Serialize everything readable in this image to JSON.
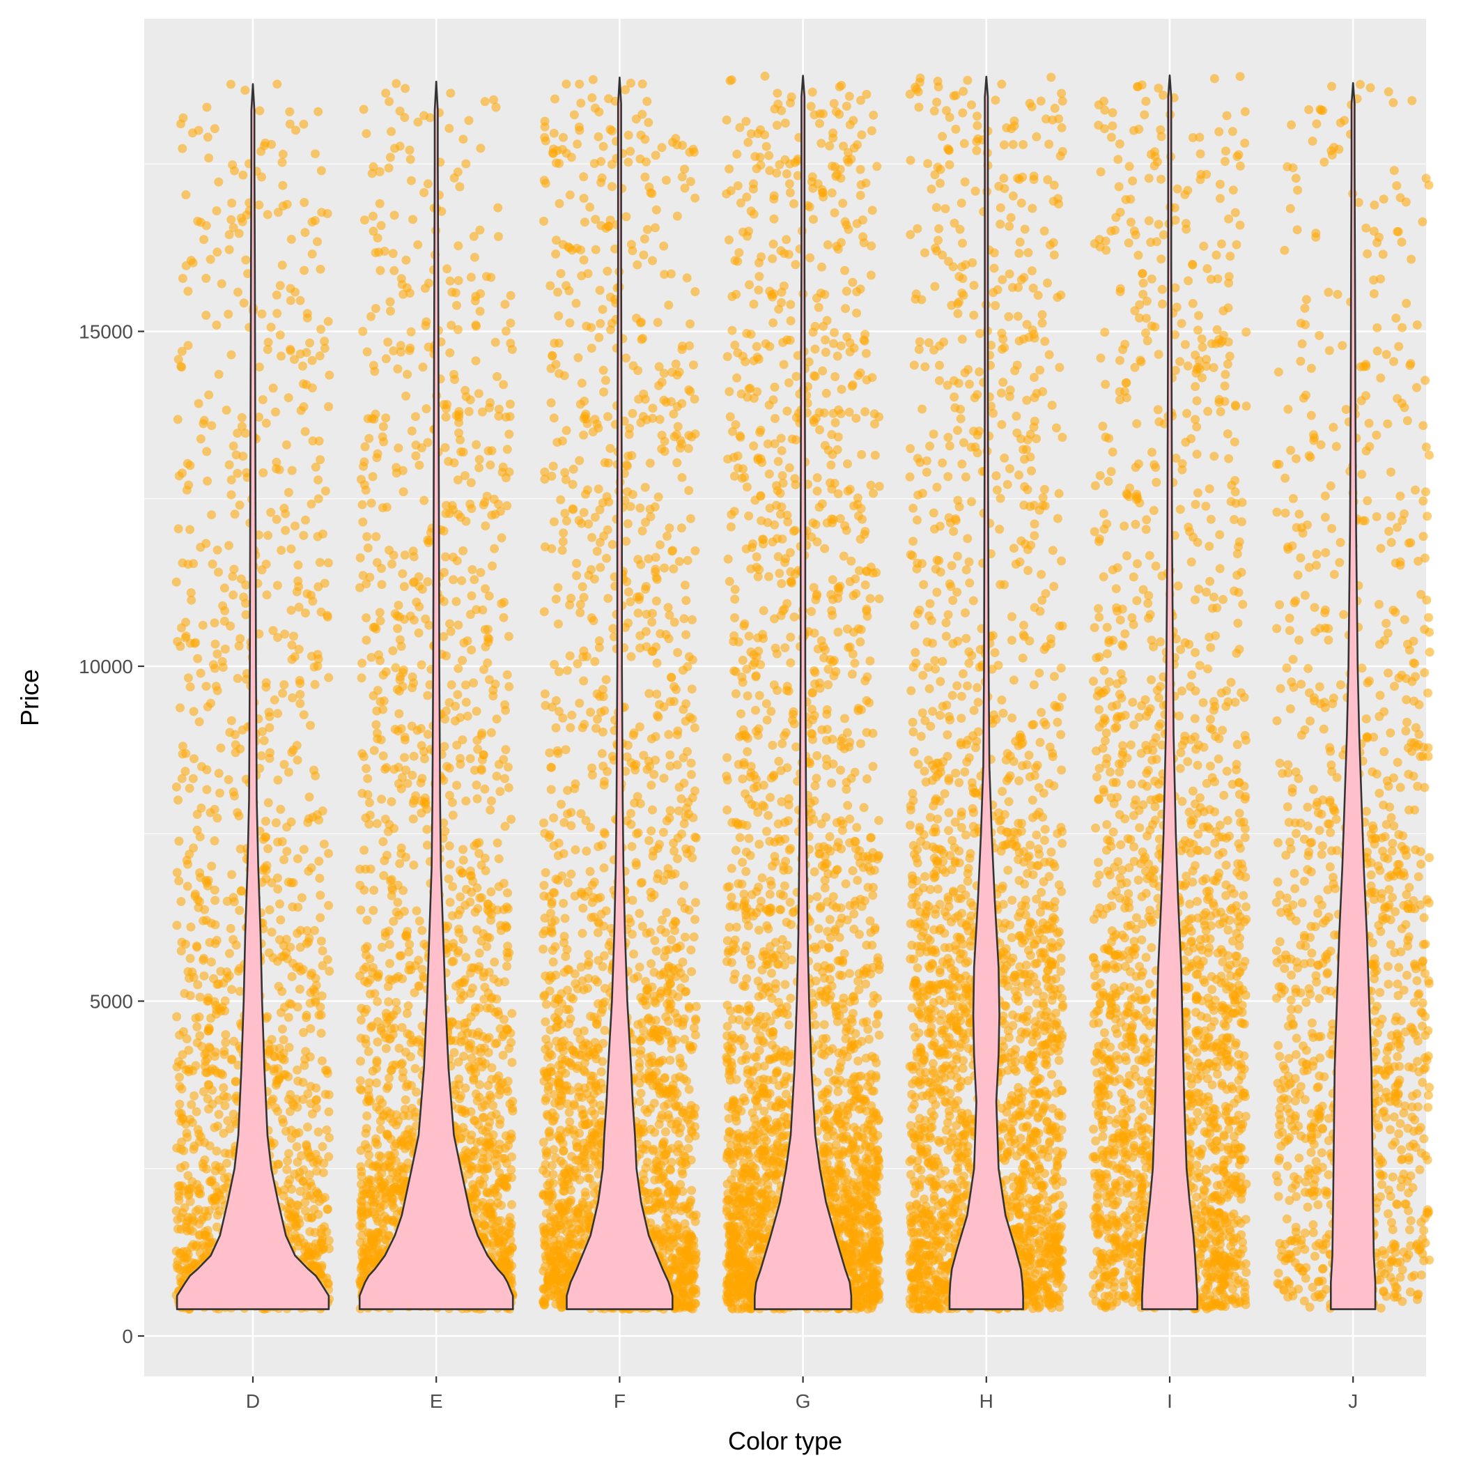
{
  "chart_data": {
    "type": "violin",
    "overlay": "jittered points",
    "xlabel": "Color type",
    "ylabel": "Price",
    "categories": [
      "D",
      "E",
      "F",
      "G",
      "H",
      "I",
      "J"
    ],
    "y_ticks": [
      0,
      5000,
      10000,
      15000
    ],
    "y_tick_labels": [
      "0",
      "5000",
      "10000",
      "15000"
    ],
    "ylim": [
      -500,
      19500
    ],
    "y_range_data": [
      326,
      18823
    ],
    "grid": true,
    "legend": "none",
    "colors": {
      "panel_background": "#EBEBEB",
      "grid_line": "#FFFFFF",
      "point_fill": "#FFA500",
      "violin_fill": "#FFC0CB",
      "violin_outline": "#333333",
      "tick_mark": "#333333"
    },
    "violins": [
      {
        "category": "D",
        "density": [
          [
            400,
            0.99
          ],
          [
            600,
            0.99
          ],
          [
            800,
            0.88
          ],
          [
            900,
            0.82
          ],
          [
            1000,
            0.72
          ],
          [
            1200,
            0.55
          ],
          [
            1500,
            0.43
          ],
          [
            2000,
            0.33
          ],
          [
            2500,
            0.24
          ],
          [
            3000,
            0.19
          ],
          [
            4000,
            0.15
          ],
          [
            5000,
            0.12
          ],
          [
            6000,
            0.1
          ],
          [
            7000,
            0.07
          ],
          [
            8000,
            0.05
          ],
          [
            10000,
            0.04
          ],
          [
            12000,
            0.035
          ],
          [
            14000,
            0.03
          ],
          [
            16000,
            0.025
          ],
          [
            17500,
            0.02
          ],
          [
            18300,
            0.02
          ],
          [
            18693,
            0.0
          ]
        ]
      },
      {
        "category": "E",
        "density": [
          [
            400,
            1.0
          ],
          [
            600,
            1.0
          ],
          [
            800,
            0.93
          ],
          [
            900,
            0.88
          ],
          [
            1000,
            0.8
          ],
          [
            1200,
            0.67
          ],
          [
            1500,
            0.54
          ],
          [
            1800,
            0.45
          ],
          [
            2500,
            0.32
          ],
          [
            3000,
            0.23
          ],
          [
            4000,
            0.16
          ],
          [
            5000,
            0.12
          ],
          [
            6000,
            0.09
          ],
          [
            7000,
            0.06
          ],
          [
            8000,
            0.05
          ],
          [
            10000,
            0.04
          ],
          [
            12000,
            0.035
          ],
          [
            14000,
            0.03
          ],
          [
            16000,
            0.025
          ],
          [
            17500,
            0.02
          ],
          [
            18300,
            0.02
          ],
          [
            18731,
            0.0
          ]
        ]
      },
      {
        "category": "F",
        "density": [
          [
            400,
            0.69
          ],
          [
            600,
            0.69
          ],
          [
            800,
            0.64
          ],
          [
            1000,
            0.56
          ],
          [
            1500,
            0.38
          ],
          [
            2000,
            0.28
          ],
          [
            2500,
            0.22
          ],
          [
            3000,
            0.2
          ],
          [
            3500,
            0.17
          ],
          [
            4000,
            0.15
          ],
          [
            5000,
            0.1
          ],
          [
            6000,
            0.07
          ],
          [
            7000,
            0.05
          ],
          [
            8000,
            0.04
          ],
          [
            10000,
            0.03
          ],
          [
            12000,
            0.03
          ],
          [
            14000,
            0.025
          ],
          [
            16000,
            0.02
          ],
          [
            17500,
            0.02
          ],
          [
            18400,
            0.02
          ],
          [
            18791,
            0.0
          ]
        ]
      },
      {
        "category": "G",
        "density": [
          [
            400,
            0.63
          ],
          [
            600,
            0.63
          ],
          [
            800,
            0.61
          ],
          [
            1000,
            0.55
          ],
          [
            1500,
            0.42
          ],
          [
            2000,
            0.3
          ],
          [
            2500,
            0.22
          ],
          [
            3000,
            0.16
          ],
          [
            4000,
            0.11
          ],
          [
            5000,
            0.08
          ],
          [
            6000,
            0.06
          ],
          [
            7000,
            0.05
          ],
          [
            8000,
            0.04
          ],
          [
            10000,
            0.03
          ],
          [
            12000,
            0.03
          ],
          [
            14000,
            0.025
          ],
          [
            16000,
            0.02
          ],
          [
            17500,
            0.02
          ],
          [
            18500,
            0.02
          ],
          [
            18818,
            0.0
          ]
        ]
      },
      {
        "category": "H",
        "density": [
          [
            400,
            0.48
          ],
          [
            600,
            0.48
          ],
          [
            800,
            0.47
          ],
          [
            1000,
            0.45
          ],
          [
            1300,
            0.38
          ],
          [
            1800,
            0.25
          ],
          [
            2500,
            0.16
          ],
          [
            3500,
            0.13
          ],
          [
            4200,
            0.16
          ],
          [
            4800,
            0.17
          ],
          [
            5500,
            0.16
          ],
          [
            6500,
            0.11
          ],
          [
            7500,
            0.07
          ],
          [
            8500,
            0.04
          ],
          [
            10000,
            0.03
          ],
          [
            12000,
            0.025
          ],
          [
            14000,
            0.02
          ],
          [
            16000,
            0.02
          ],
          [
            17500,
            0.02
          ],
          [
            18500,
            0.02
          ],
          [
            18803,
            0.0
          ]
        ]
      },
      {
        "category": "I",
        "density": [
          [
            400,
            0.36
          ],
          [
            600,
            0.36
          ],
          [
            800,
            0.35
          ],
          [
            1000,
            0.34
          ],
          [
            1200,
            0.33
          ],
          [
            1500,
            0.31
          ],
          [
            2000,
            0.26
          ],
          [
            2500,
            0.22
          ],
          [
            3500,
            0.19
          ],
          [
            4500,
            0.17
          ],
          [
            5500,
            0.15
          ],
          [
            6500,
            0.11
          ],
          [
            7500,
            0.08
          ],
          [
            9000,
            0.05
          ],
          [
            10500,
            0.04
          ],
          [
            12000,
            0.03
          ],
          [
            14000,
            0.025
          ],
          [
            16000,
            0.02
          ],
          [
            17500,
            0.02
          ],
          [
            18500,
            0.02
          ],
          [
            18823,
            0.0
          ]
        ]
      },
      {
        "category": "J",
        "density": [
          [
            400,
            0.29
          ],
          [
            600,
            0.29
          ],
          [
            800,
            0.29
          ],
          [
            1000,
            0.28
          ],
          [
            1200,
            0.27
          ],
          [
            2000,
            0.26
          ],
          [
            3000,
            0.25
          ],
          [
            4000,
            0.24
          ],
          [
            5000,
            0.21
          ],
          [
            6000,
            0.18
          ],
          [
            7000,
            0.14
          ],
          [
            8000,
            0.11
          ],
          [
            9000,
            0.08
          ],
          [
            10000,
            0.06
          ],
          [
            12000,
            0.04
          ],
          [
            14000,
            0.03
          ],
          [
            16000,
            0.025
          ],
          [
            17500,
            0.02
          ],
          [
            18400,
            0.02
          ],
          [
            18710,
            0.0
          ]
        ]
      }
    ]
  }
}
